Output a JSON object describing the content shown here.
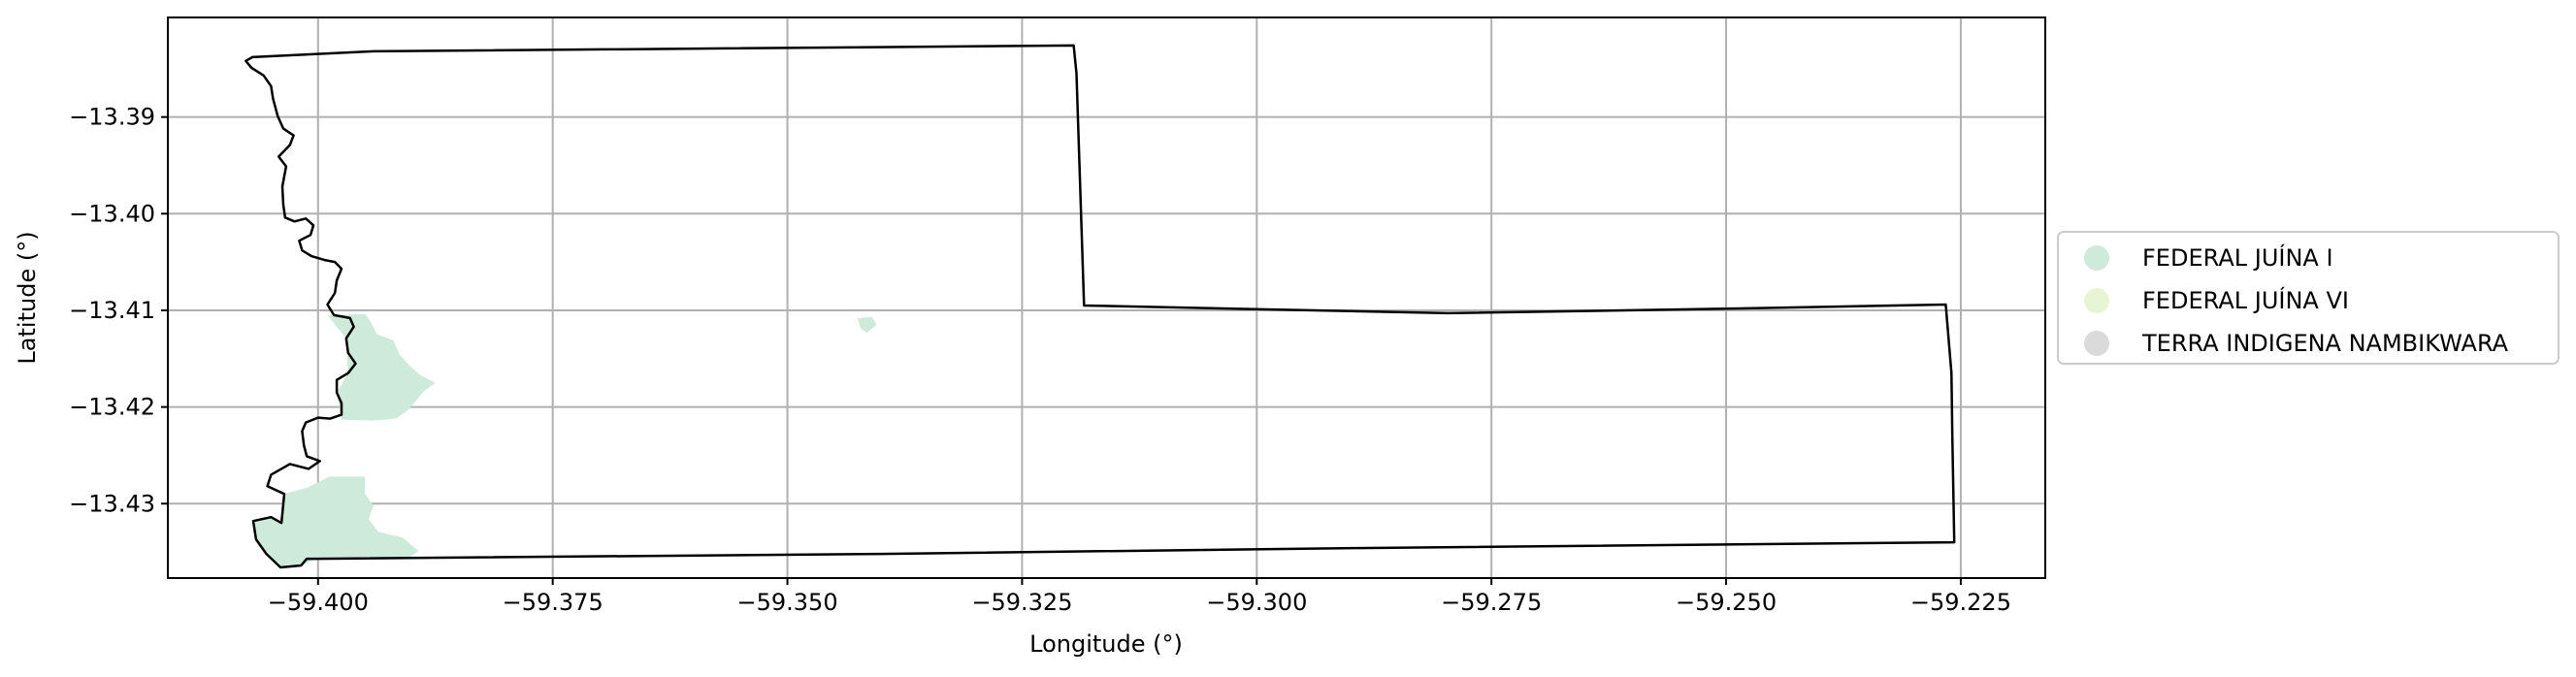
{
  "chart_data": {
    "type": "map",
    "xlabel": "Longitude (°)",
    "ylabel": "Latitude (°)",
    "xlim": [
      -59.416,
      -59.216
    ],
    "ylim": [
      -13.4377,
      -13.3797
    ],
    "grid": true,
    "x_ticks": [
      -59.4,
      -59.375,
      -59.35,
      -59.325,
      -59.3,
      -59.275,
      -59.25,
      -59.225
    ],
    "x_tick_labels": [
      "−59.400",
      "−59.375",
      "−59.350",
      "−59.325",
      "−59.300",
      "−59.275",
      "−59.250",
      "−59.225"
    ],
    "y_ticks": [
      -13.39,
      -13.4,
      -13.41,
      -13.42,
      -13.43
    ],
    "y_tick_labels": [
      "−13.39",
      "−13.40",
      "−13.41",
      "−13.42",
      "−13.43"
    ],
    "legend_placement": "right",
    "legend": [
      {
        "label": "FEDERAL JUÍNA I",
        "color": "#cdeadb"
      },
      {
        "label": "FEDERAL JUÍNA VI",
        "color": "#e7f5d5"
      },
      {
        "label": "TERRA INDIGENA NAMBIKWARA",
        "color": "#dadada"
      }
    ],
    "boundary_color": "#000000",
    "boundary": [
      [
        -59.3941,
        -13.3832
      ],
      [
        -59.3195,
        -13.3826
      ],
      [
        -59.3192,
        -13.3855
      ],
      [
        -59.3184,
        -13.4095
      ],
      [
        -59.2796,
        -13.4103
      ],
      [
        -59.2484,
        -13.4098
      ],
      [
        -59.2266,
        -13.4094
      ],
      [
        -59.226,
        -13.4165
      ],
      [
        -59.2259,
        -13.423
      ],
      [
        -59.2257,
        -13.434
      ],
      [
        -59.2898,
        -13.4346
      ],
      [
        -59.3401,
        -13.4352
      ],
      [
        -59.4002,
        -13.4357
      ],
      [
        -59.4012,
        -13.4357
      ],
      [
        -59.4018,
        -13.4364
      ],
      [
        -59.404,
        -13.4366
      ],
      [
        -59.4055,
        -13.4352
      ],
      [
        -59.4066,
        -13.4337
      ],
      [
        -59.4069,
        -13.4318
      ],
      [
        -59.405,
        -13.4314
      ],
      [
        -59.4039,
        -13.432
      ],
      [
        -59.4036,
        -13.429
      ],
      [
        -59.4054,
        -13.4282
      ],
      [
        -59.405,
        -13.427
      ],
      [
        -59.403,
        -13.4259
      ],
      [
        -59.401,
        -13.4264
      ],
      [
        -59.3998,
        -13.4256
      ],
      [
        -59.4012,
        -13.4251
      ],
      [
        -59.4015,
        -13.424
      ],
      [
        -59.4017,
        -13.4225
      ],
      [
        -59.4013,
        -13.4216
      ],
      [
        -59.4,
        -13.4211
      ],
      [
        -59.3987,
        -13.4212
      ],
      [
        -59.3975,
        -13.4208
      ],
      [
        -59.3975,
        -13.4196
      ],
      [
        -59.398,
        -13.4185
      ],
      [
        -59.398,
        -13.4172
      ],
      [
        -59.3968,
        -13.4165
      ],
      [
        -59.396,
        -13.4155
      ],
      [
        -59.3968,
        -13.4144
      ],
      [
        -59.397,
        -13.4129
      ],
      [
        -59.3962,
        -13.4117
      ],
      [
        -59.3966,
        -13.4108
      ],
      [
        -59.3983,
        -13.4105
      ],
      [
        -59.399,
        -13.4094
      ],
      [
        -59.3982,
        -13.4082
      ],
      [
        -59.398,
        -13.4069
      ],
      [
        -59.3975,
        -13.4057
      ],
      [
        -59.3982,
        -13.405
      ],
      [
        -59.3993,
        -13.4048
      ],
      [
        -59.4007,
        -13.4044
      ],
      [
        -59.4017,
        -13.4038
      ],
      [
        -59.402,
        -13.4028
      ],
      [
        -59.4008,
        -13.4022
      ],
      [
        -59.4005,
        -13.4012
      ],
      [
        -59.4013,
        -13.4005
      ],
      [
        -59.4025,
        -13.4008
      ],
      [
        -59.4035,
        -13.4004
      ],
      [
        -59.4037,
        -13.3991
      ],
      [
        -59.4038,
        -13.3972
      ],
      [
        -59.4034,
        -13.3951
      ],
      [
        -59.4042,
        -13.3941
      ],
      [
        -59.403,
        -13.3929
      ],
      [
        -59.4026,
        -13.3919
      ],
      [
        -59.4037,
        -13.3912
      ],
      [
        -59.4043,
        -13.3899
      ],
      [
        -59.4048,
        -13.3881
      ],
      [
        -59.405,
        -13.3868
      ],
      [
        -59.4058,
        -13.3857
      ],
      [
        -59.4071,
        -13.3849
      ],
      [
        -59.4077,
        -13.3842
      ],
      [
        -59.407,
        -13.3838
      ],
      [
        -59.3941,
        -13.3832
      ]
    ],
    "regions": [
      {
        "name": "FEDERAL JUÍNA I",
        "color": "#cdeadb",
        "polygons": [
          [
            [
              -59.399,
              -13.4105
            ],
            [
              -59.395,
              -13.4104
            ],
            [
              -59.3944,
              -13.4112
            ],
            [
              -59.3937,
              -13.4125
            ],
            [
              -59.392,
              -13.4131
            ],
            [
              -59.3913,
              -13.4146
            ],
            [
              -59.3903,
              -13.4157
            ],
            [
              -59.3891,
              -13.4167
            ],
            [
              -59.3875,
              -13.4175
            ],
            [
              -59.3888,
              -13.4184
            ],
            [
              -59.3896,
              -13.4194
            ],
            [
              -59.3904,
              -13.4203
            ],
            [
              -59.3917,
              -13.4212
            ],
            [
              -59.3942,
              -13.4214
            ],
            [
              -59.3975,
              -13.4213
            ],
            [
              -59.398,
              -13.4185
            ],
            [
              -59.3968,
              -13.4165
            ],
            [
              -59.397,
              -13.4129
            ],
            [
              -59.399,
              -13.4105
            ]
          ],
          [
            [
              -59.3988,
              -13.4272
            ],
            [
              -59.395,
              -13.4272
            ],
            [
              -59.395,
              -13.429
            ],
            [
              -59.3941,
              -13.4302
            ],
            [
              -59.3946,
              -13.4316
            ],
            [
              -59.3936,
              -13.4329
            ],
            [
              -59.391,
              -13.4335
            ],
            [
              -59.3893,
              -13.4349
            ],
            [
              -59.3905,
              -13.4357
            ],
            [
              -59.4002,
              -13.4357
            ],
            [
              -59.4018,
              -13.4364
            ],
            [
              -59.404,
              -13.4366
            ],
            [
              -59.4066,
              -13.4337
            ],
            [
              -59.4069,
              -13.4318
            ],
            [
              -59.405,
              -13.4314
            ],
            [
              -59.4039,
              -13.432
            ],
            [
              -59.4036,
              -13.429
            ],
            [
              -59.401,
              -13.4283
            ],
            [
              -59.3988,
              -13.4272
            ]
          ],
          [
            [
              -59.3425,
              -13.4108
            ],
            [
              -59.341,
              -13.4107
            ],
            [
              -59.3405,
              -13.4115
            ],
            [
              -59.3415,
              -13.4123
            ],
            [
              -59.3422,
              -13.4119
            ],
            [
              -59.3425,
              -13.4108
            ]
          ]
        ]
      }
    ]
  }
}
